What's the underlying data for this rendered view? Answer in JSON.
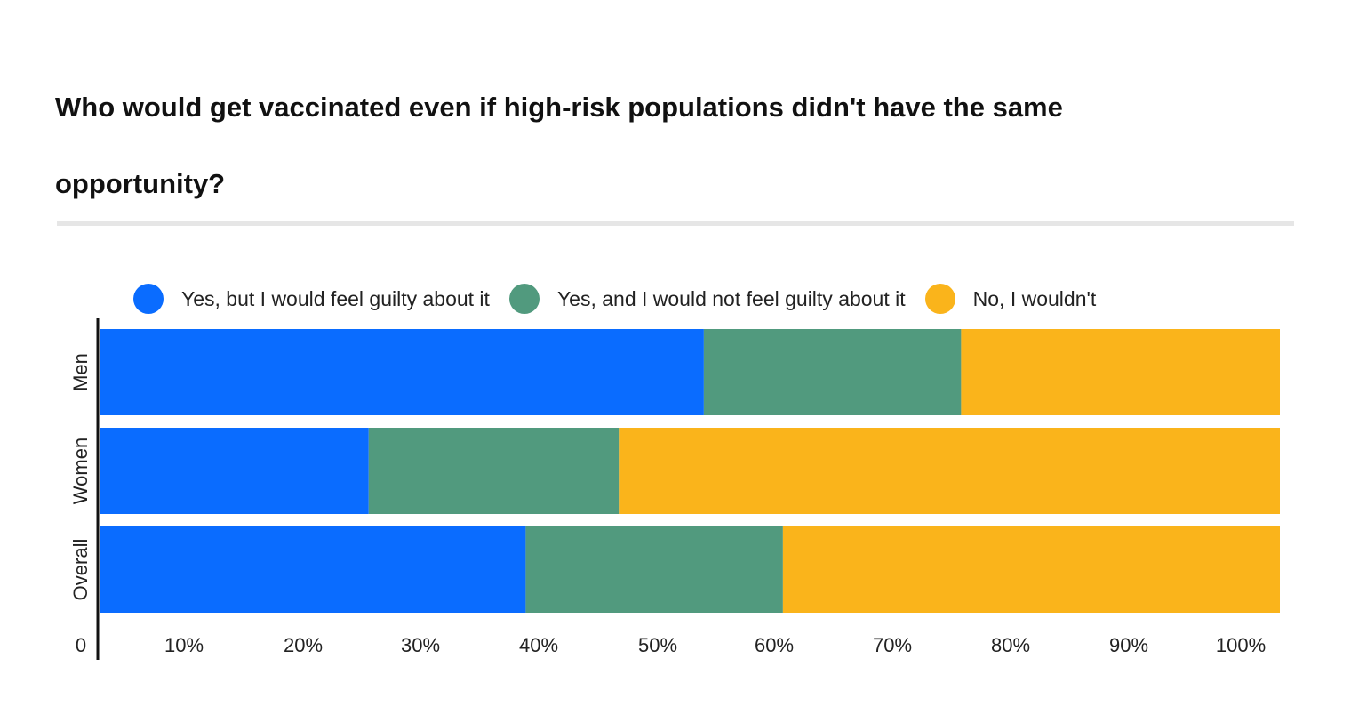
{
  "chart_data": {
    "type": "bar",
    "orientation": "horizontal",
    "stacked": true,
    "title": "Who would get vaccinated even if high-risk populations didn't have the same opportunity?",
    "categories": [
      "Men",
      "Women",
      "Overall"
    ],
    "series": [
      {
        "name": "Yes, but I would feel guilty about it",
        "color": "#0a6cff",
        "values": [
          51.2,
          22.8,
          36.1
        ]
      },
      {
        "name": "Yes, and I would not feel guilty about it",
        "color": "#519a7e",
        "values": [
          21.8,
          21.2,
          21.8
        ]
      },
      {
        "name": "No, I wouldn't",
        "color": "#fab41b",
        "values": [
          27.0,
          56.0,
          42.1
        ]
      }
    ],
    "x_ticks": [
      "0",
      "10%",
      "20%",
      "30%",
      "40%",
      "50%",
      "60%",
      "70%",
      "80%",
      "90%",
      "100%"
    ],
    "xlim": [
      0,
      100
    ],
    "legend_position": "top-left",
    "grid": false
  }
}
